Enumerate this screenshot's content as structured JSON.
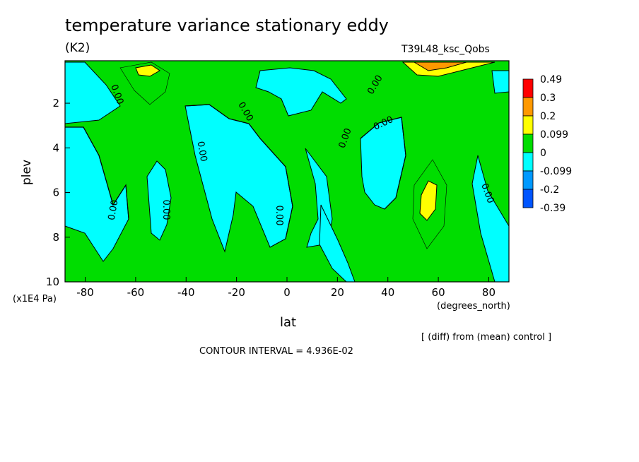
{
  "chart_data": {
    "type": "heatmap",
    "title": "temperature variance stationary eddy",
    "units": "(K2)",
    "run_label": "T39L48_ksc_Qobs",
    "xlabel": "lat",
    "xunits": "(degrees_north)",
    "ylabel": "plev",
    "yunits": "(x1E4 Pa)",
    "xlim": [
      -88,
      88
    ],
    "ylim": [
      0.1,
      10
    ],
    "y_inverted": true,
    "xticks": [
      -80,
      -60,
      -40,
      -20,
      0,
      20,
      40,
      60,
      80
    ],
    "yticks": [
      2,
      4,
      6,
      8,
      10
    ],
    "xtick_labels": [
      "-80",
      "-60",
      "-40",
      "-20",
      "0",
      "20",
      "40",
      "60",
      "80"
    ],
    "ytick_labels": [
      "2",
      "4",
      "6",
      "8",
      "10"
    ],
    "contour_labels": [
      "0.00",
      "0.00",
      "0.00",
      "0.00",
      "0.00",
      "0.00",
      "0.00",
      "0.00",
      "0.00",
      "0.00"
    ],
    "colorbar": {
      "labels": [
        "0.49",
        "0.3",
        "0.2",
        "0.099",
        "0",
        "-0.099",
        "-0.2",
        "-0.39"
      ],
      "colors": [
        "#ff0000",
        "#ff9900",
        "#ffff00",
        "#00dd00",
        "#00ffff",
        "#0099ff",
        "#0055ff"
      ]
    },
    "background_color": "#00dd00",
    "negative_color": "#00ffff",
    "positive_color": "#ffff00",
    "peak_color": "#ff9900",
    "note": "[ (diff) from (mean) control ]",
    "contour_interval": "CONTOUR INTERVAL = 4.936E-02"
  }
}
